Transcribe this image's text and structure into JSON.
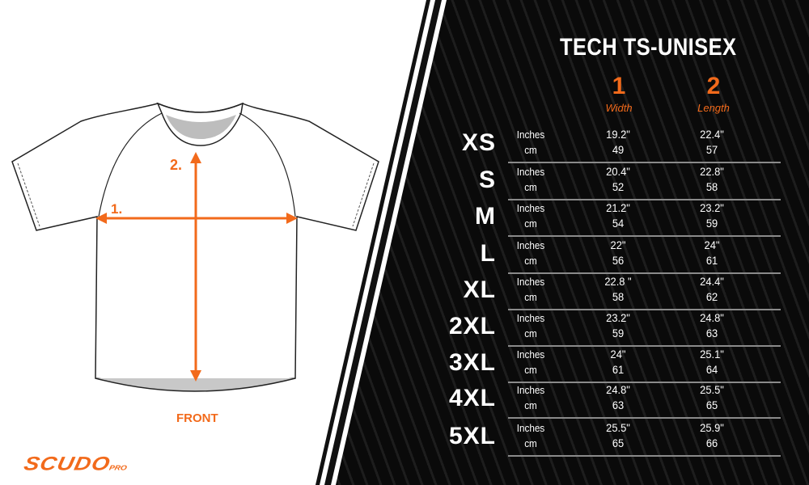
{
  "title": "TECH TS-UNISEX",
  "columns": [
    {
      "number": "1",
      "label": "Width"
    },
    {
      "number": "2",
      "label": "Length"
    }
  ],
  "unit_labels": {
    "inches": "Inches",
    "cm": "cm"
  },
  "rows": [
    {
      "size": "XS",
      "width_in": "19.2\"",
      "width_cm": "49",
      "length_in": "22.4\"",
      "length_cm": "57"
    },
    {
      "size": "S",
      "width_in": "20.4\"",
      "width_cm": "52",
      "length_in": "22.8\"",
      "length_cm": "58"
    },
    {
      "size": "M",
      "width_in": "21.2\"",
      "width_cm": "54",
      "length_in": "23.2\"",
      "length_cm": "59"
    },
    {
      "size": "L",
      "width_in": "22\"",
      "width_cm": "56",
      "length_in": "24\"",
      "length_cm": "61"
    },
    {
      "size": "XL",
      "width_in": "22.8 \"",
      "width_cm": "58",
      "length_in": "24.4\"",
      "length_cm": "62"
    },
    {
      "size": "2XL",
      "width_in": "23.2\"",
      "width_cm": "59",
      "length_in": "24.8\"",
      "length_cm": "63"
    },
    {
      "size": "3XL",
      "width_in": "24\"",
      "width_cm": "61",
      "length_in": "25.1\"",
      "length_cm": "64"
    },
    {
      "size": "4XL",
      "width_in": "24.8\"",
      "width_cm": "63",
      "length_in": "25.5\"",
      "length_cm": "65"
    },
    {
      "size": "5XL",
      "width_in": "25.5\"",
      "width_cm": "65",
      "length_in": "25.9\"",
      "length_cm": "66"
    }
  ],
  "diagram": {
    "label_1": "1.",
    "label_2": "2.",
    "view": "FRONT"
  },
  "brand": {
    "name": "SCUDO",
    "suffix": "PRO"
  },
  "colors": {
    "accent": "#f26a1b",
    "background_dark": "#0a0a0a",
    "text_light": "#ffffff"
  }
}
